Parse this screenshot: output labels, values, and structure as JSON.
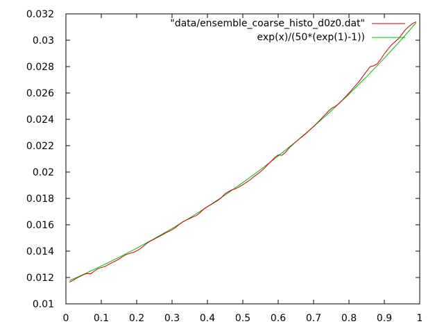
{
  "chart_data": {
    "type": "line",
    "title": "",
    "xlabel": "",
    "ylabel": "",
    "xlim": [
      0,
      1
    ],
    "ylim": [
      0.01,
      0.032
    ],
    "grid": false,
    "legend_position": "top-right",
    "x_ticks": [
      "0",
      "0.1",
      "0.2",
      "0.3",
      "0.4",
      "0.5",
      "0.6",
      "0.7",
      "0.8",
      "0.9",
      "1"
    ],
    "y_ticks": [
      "0.01",
      "0.012",
      "0.014",
      "0.016",
      "0.018",
      "0.02",
      "0.022",
      "0.024",
      "0.026",
      "0.028",
      "0.03",
      "0.032"
    ],
    "series": [
      {
        "name": "\"data/ensemble_coarse_histo_d0z0.dat\"",
        "color": "#cc0000",
        "x": [
          0.01,
          0.02,
          0.03,
          0.04,
          0.05,
          0.06,
          0.07,
          0.08,
          0.09,
          0.1,
          0.11,
          0.12,
          0.13,
          0.14,
          0.15,
          0.16,
          0.17,
          0.18,
          0.19,
          0.2,
          0.21,
          0.22,
          0.23,
          0.24,
          0.25,
          0.26,
          0.27,
          0.28,
          0.29,
          0.3,
          0.31,
          0.32,
          0.33,
          0.34,
          0.35,
          0.36,
          0.37,
          0.38,
          0.39,
          0.4,
          0.41,
          0.42,
          0.43,
          0.44,
          0.45,
          0.46,
          0.47,
          0.48,
          0.49,
          0.5,
          0.51,
          0.52,
          0.53,
          0.54,
          0.55,
          0.56,
          0.57,
          0.58,
          0.59,
          0.6,
          0.61,
          0.62,
          0.63,
          0.64,
          0.65,
          0.66,
          0.67,
          0.68,
          0.69,
          0.7,
          0.71,
          0.72,
          0.73,
          0.74,
          0.75,
          0.76,
          0.77,
          0.78,
          0.79,
          0.8,
          0.81,
          0.82,
          0.83,
          0.84,
          0.85,
          0.86,
          0.87,
          0.88,
          0.89,
          0.9,
          0.91,
          0.92,
          0.93,
          0.94,
          0.95,
          0.96,
          0.97,
          0.98,
          0.99
        ],
        "values": [
          0.01165,
          0.01178,
          0.01195,
          0.01208,
          0.01222,
          0.0123,
          0.01228,
          0.01248,
          0.01266,
          0.01276,
          0.01282,
          0.01298,
          0.01312,
          0.01325,
          0.0134,
          0.01358,
          0.01374,
          0.01382,
          0.0139,
          0.01402,
          0.01418,
          0.0144,
          0.01462,
          0.01478,
          0.01492,
          0.01506,
          0.0152,
          0.01535,
          0.01549,
          0.01562,
          0.0158,
          0.01602,
          0.01622,
          0.01636,
          0.01648,
          0.0166,
          0.01672,
          0.01695,
          0.0172,
          0.01738,
          0.01752,
          0.0177,
          0.01786,
          0.01808,
          0.01836,
          0.01852,
          0.01866,
          0.01874,
          0.01888,
          0.01904,
          0.01922,
          0.0194,
          0.01962,
          0.01982,
          0.02002,
          0.02026,
          0.02056,
          0.02082,
          0.0211,
          0.0213,
          0.02126,
          0.02148,
          0.0218,
          0.02206,
          0.0223,
          0.02252,
          0.02274,
          0.02296,
          0.02322,
          0.02346,
          0.02372,
          0.024,
          0.02428,
          0.02456,
          0.02482,
          0.02496,
          0.02516,
          0.02542,
          0.0257,
          0.026,
          0.0263,
          0.0266,
          0.02692,
          0.0273,
          0.02765,
          0.028,
          0.02806,
          0.02822,
          0.02856,
          0.02898,
          0.02932,
          0.02964,
          0.02988,
          0.03012,
          0.03046,
          0.03082,
          0.03106,
          0.03128,
          0.0314
        ]
      },
      {
        "name": "exp(x)/(50*(exp(1)-1))",
        "color": "#00bb00",
        "function": "exp(x)/(50*(exp(1)-1))",
        "x": [
          0.01,
          0.05,
          0.1,
          0.15,
          0.2,
          0.25,
          0.3,
          0.35,
          0.4,
          0.45,
          0.5,
          0.55,
          0.6,
          0.65,
          0.7,
          0.75,
          0.8,
          0.85,
          0.9,
          0.95,
          0.99
        ],
        "values": [
          0.01176,
          0.01224,
          0.01287,
          0.01353,
          0.01422,
          0.01495,
          0.01572,
          0.01652,
          0.01737,
          0.01826,
          0.0192,
          0.02018,
          0.02122,
          0.0223,
          0.02345,
          0.02465,
          0.02591,
          0.02724,
          0.02864,
          0.03011,
          0.03134
        ]
      }
    ]
  }
}
